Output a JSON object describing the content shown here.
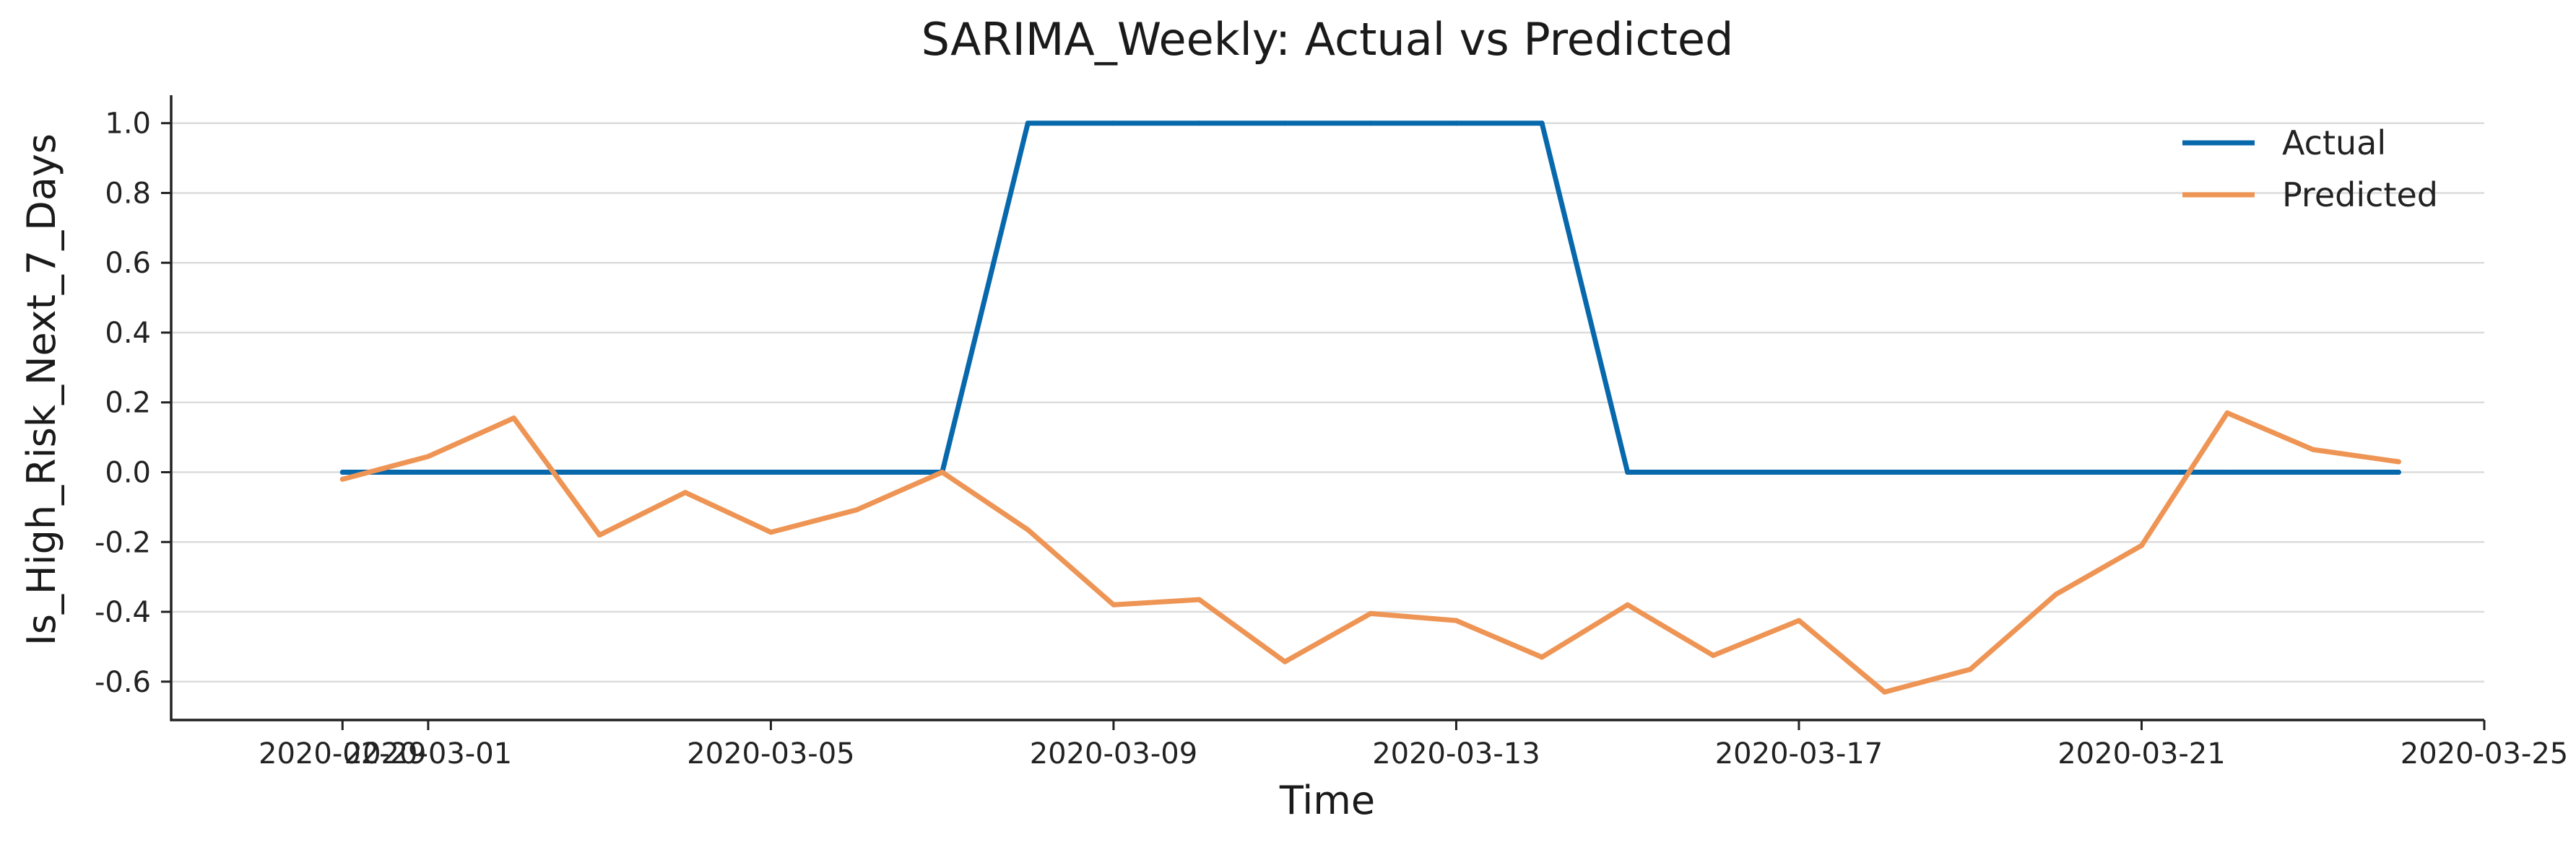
{
  "chart_data": {
    "type": "line",
    "title": "SARIMA_Weekly: Actual vs Predicted",
    "xlabel": "Time",
    "ylabel": "Is_High_Risk_Next_7_Days",
    "x": [
      "2020-02-29",
      "2020-03-01",
      "2020-03-02",
      "2020-03-03",
      "2020-03-04",
      "2020-03-05",
      "2020-03-06",
      "2020-03-07",
      "2020-03-08",
      "2020-03-09",
      "2020-03-10",
      "2020-03-11",
      "2020-03-12",
      "2020-03-13",
      "2020-03-14",
      "2020-03-15",
      "2020-03-16",
      "2020-03-17",
      "2020-03-18",
      "2020-03-19",
      "2020-03-20",
      "2020-03-21",
      "2020-03-22",
      "2020-03-23",
      "2020-03-24"
    ],
    "xlim": [
      "2020-02-27",
      "2020-03-25"
    ],
    "x_ticks": [
      "2020-02-29",
      "2020-03-01",
      "2020-03-05",
      "2020-03-09",
      "2020-03-13",
      "2020-03-17",
      "2020-03-21",
      "2020-03-25"
    ],
    "y_ticks": [
      "-0.6",
      "-0.4",
      "-0.2",
      "0.0",
      "0.2",
      "0.4",
      "0.6",
      "0.8",
      "1.0"
    ],
    "ylim": [
      -0.71,
      1.08
    ],
    "series": [
      {
        "name": "Actual",
        "color": "#0868ac",
        "values": [
          0,
          0,
          0,
          0,
          0,
          0,
          0,
          0,
          1,
          1,
          1,
          1,
          1,
          1,
          1,
          0,
          0,
          0,
          0,
          0,
          0,
          0,
          0,
          0,
          0
        ]
      },
      {
        "name": "Predicted",
        "color": "#ee9555",
        "values": [
          -0.02,
          0.045,
          0.155,
          -0.18,
          -0.058,
          -0.172,
          -0.108,
          0.0,
          -0.165,
          -0.38,
          -0.365,
          -0.543,
          -0.405,
          -0.425,
          -0.53,
          -0.38,
          -0.525,
          -0.425,
          -0.63,
          -0.565,
          -0.35,
          -0.21,
          0.17,
          0.065,
          0.03
        ]
      }
    ],
    "grid": "horizontal",
    "legend": "top-right"
  }
}
